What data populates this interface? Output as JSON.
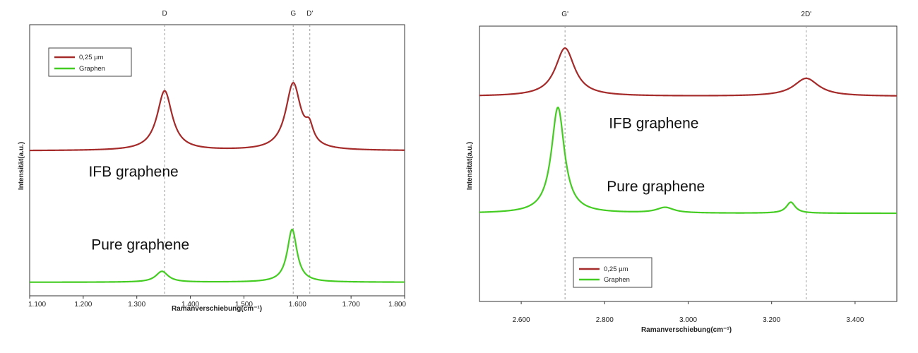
{
  "colors": {
    "series_0": "#a52a2a",
    "series_1": "#44cc22"
  },
  "chart_data": [
    {
      "type": "line",
      "xlabel": "Ramanverschiebung(cm⁻¹)",
      "ylabel": "Intensität(a.u.)",
      "xlim": [
        1100,
        1800
      ],
      "xticks": [
        1100,
        1200,
        1300,
        1400,
        1500,
        1600,
        1700,
        1800
      ],
      "xtick_labels": [
        "1.100",
        "1.200",
        "1.300",
        "1.400",
        "1.500",
        "1.600",
        "1.700",
        "1.800"
      ],
      "ylim": [
        0,
        1
      ],
      "grid": false,
      "legend": {
        "position": "top-left",
        "entries": [
          "0,25 µm",
          "Graphen"
        ]
      },
      "reference_lines": [
        {
          "x": 1352,
          "label": "D"
        },
        {
          "x": 1592,
          "label": "G"
        },
        {
          "x": 1623,
          "label": "D'"
        }
      ],
      "annotations": [
        {
          "text": "IFB graphene",
          "x": 1210,
          "y": 0.44
        },
        {
          "text": "Pure graphene",
          "x": 1215,
          "y": 0.17
        }
      ],
      "series": [
        {
          "name": "0,25 µm",
          "baseline": 0.535,
          "peaks": [
            {
              "center": 1352,
              "height": 0.22,
              "width": 17
            },
            {
              "center": 1592,
              "height": 0.245,
              "width": 17
            },
            {
              "center": 1622,
              "height": 0.06,
              "width": 9
            }
          ]
        },
        {
          "name": "Graphen",
          "baseline": 0.05,
          "peaks": [
            {
              "center": 1347,
              "height": 0.04,
              "width": 14
            },
            {
              "center": 1590,
              "height": 0.195,
              "width": 11
            }
          ]
        }
      ]
    },
    {
      "type": "line",
      "xlabel": "Ramanverschiebung(cm⁻¹)",
      "ylabel": "Intensität(a.u.)",
      "xlim": [
        2500,
        3500
      ],
      "xticks": [
        2600,
        2800,
        3000,
        3200,
        3400
      ],
      "xtick_labels": [
        "2.600",
        "2.800",
        "3.000",
        "3.200",
        "3.400"
      ],
      "ylim": [
        0,
        1
      ],
      "grid": false,
      "legend": {
        "position": "bottom-left",
        "entries": [
          "0,25 µm",
          "Graphen"
        ]
      },
      "reference_lines": [
        {
          "x": 2705,
          "label": "G'"
        },
        {
          "x": 3283,
          "label": "2D'"
        }
      ],
      "annotations": [
        {
          "text": "IFB graphene",
          "x": 2810,
          "y": 0.63
        },
        {
          "text": "Pure graphene",
          "x": 2805,
          "y": 0.4
        }
      ],
      "series": [
        {
          "name": "0,25 µm",
          "baseline": 0.745,
          "peaks": [
            {
              "center": 2705,
              "height": 0.175,
              "width": 28
            },
            {
              "center": 3283,
              "height": 0.065,
              "width": 36
            }
          ]
        },
        {
          "name": "Graphen",
          "baseline": 0.32,
          "peaks": [
            {
              "center": 2688,
              "height": 0.385,
              "width": 19
            },
            {
              "center": 2945,
              "height": 0.02,
              "width": 25
            },
            {
              "center": 3246,
              "height": 0.04,
              "width": 13
            }
          ]
        }
      ]
    }
  ]
}
